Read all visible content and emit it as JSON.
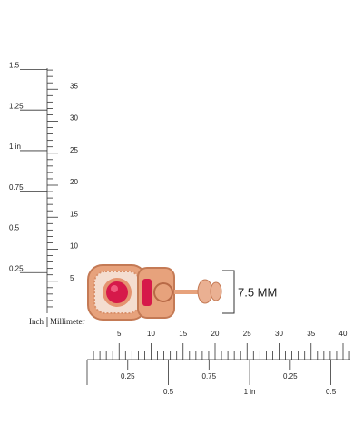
{
  "vertical_ruler": {
    "inch_labels": [
      "1.5",
      "1.25",
      "1 in",
      "0.75",
      "0.5",
      "0.25"
    ],
    "mm_labels": [
      "35",
      "30",
      "25",
      "20",
      "15",
      "10",
      "5"
    ],
    "inch_caption": "Inch",
    "mm_caption": "Millimeter"
  },
  "horizontal_ruler": {
    "mm_labels": [
      "5",
      "10",
      "15",
      "20",
      "25",
      "30",
      "35",
      "40"
    ],
    "inch_labels": [
      "0.25",
      "0.5",
      "0.75",
      "1 in",
      "0.25",
      "0.5"
    ]
  },
  "dimension": {
    "label": "7.5 MM"
  }
}
